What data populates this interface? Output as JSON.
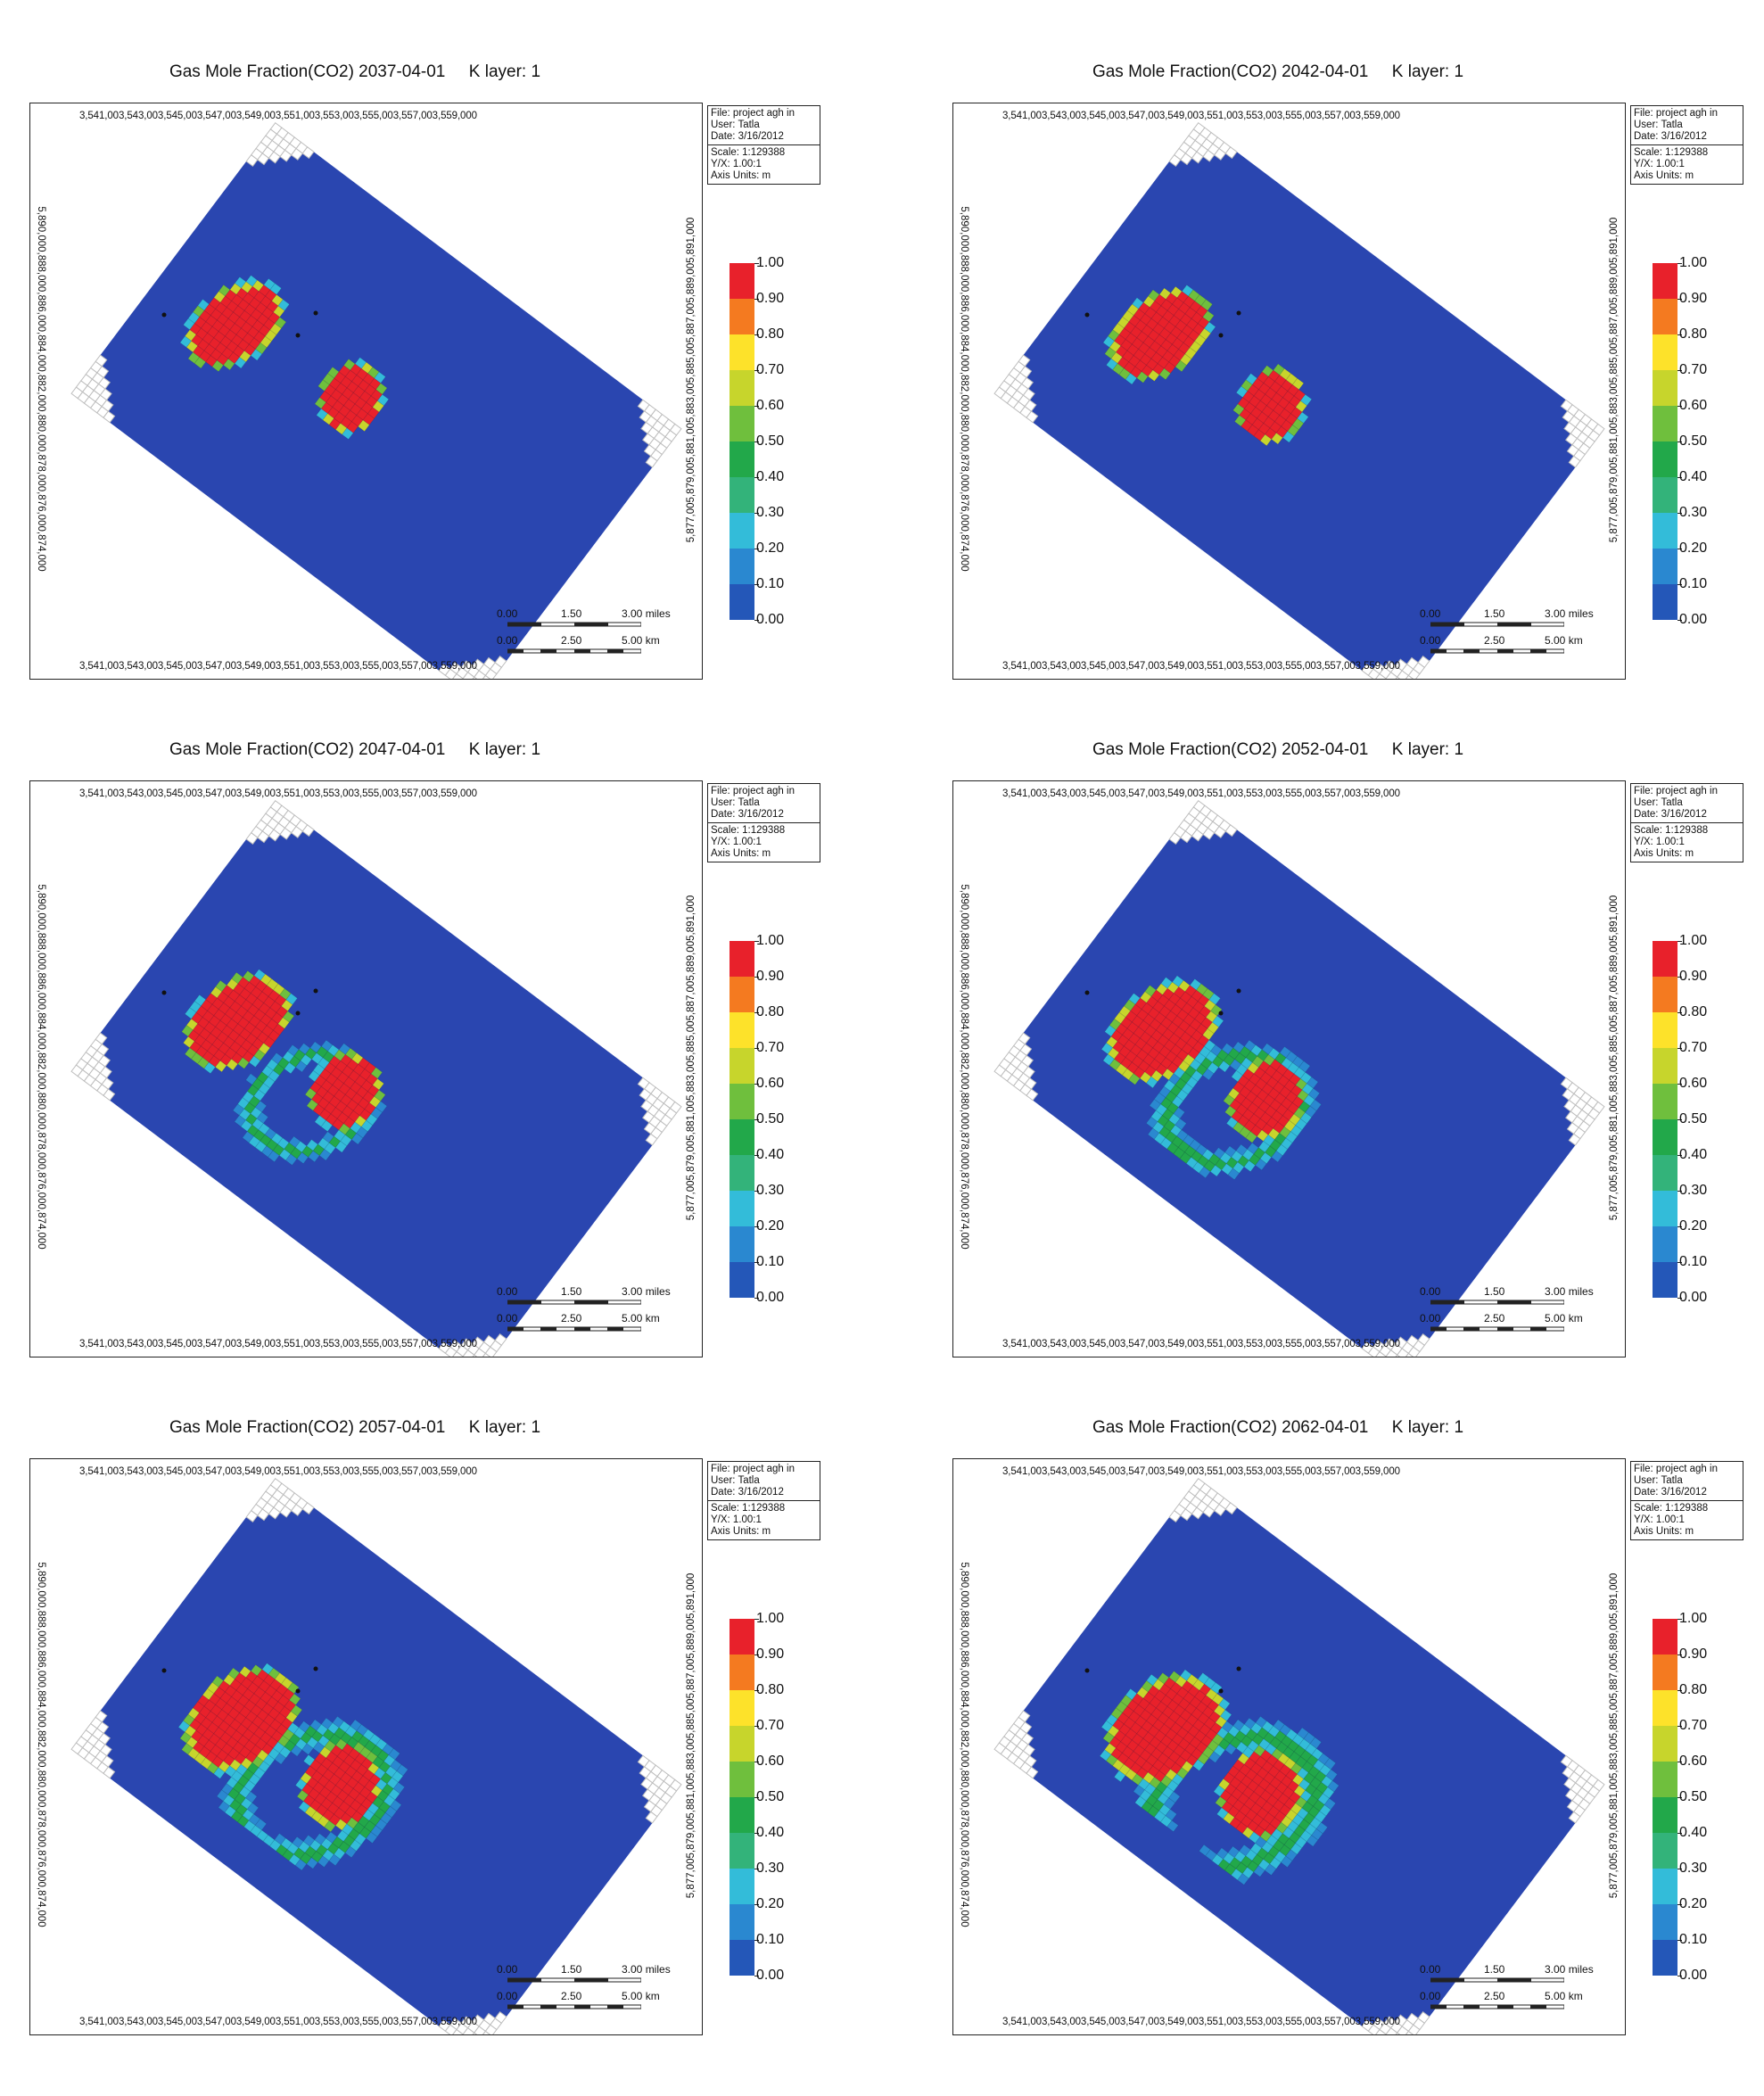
{
  "panels": [
    {
      "title": "Gas Mole Fraction(CO2) 2037-04-01",
      "layer": "K layer: 1",
      "stage": 0
    },
    {
      "title": "Gas Mole Fraction(CO2) 2042-04-01",
      "layer": "K layer: 1",
      "stage": 1
    },
    {
      "title": "Gas Mole Fraction(CO2) 2047-04-01",
      "layer": "K layer: 1",
      "stage": 2
    },
    {
      "title": "Gas Mole Fraction(CO2) 2052-04-01",
      "layer": "K layer: 1",
      "stage": 3
    },
    {
      "title": "Gas Mole Fraction(CO2) 2057-04-01",
      "layer": "K layer: 1",
      "stage": 4
    },
    {
      "title": "Gas Mole Fraction(CO2) 2062-04-01",
      "layer": "K layer: 1",
      "stage": 5
    }
  ],
  "axes": {
    "x_ticks": "3,541,003,543,003,545,003,547,003,549,003,551,003,553,003,555,003,557,003,559,000",
    "y_left_ticks": "5,890,000,888,000,886,000,884,000,882,000,880,000,878,000,876,000,874,000",
    "y_right_ticks": "5,877,005,879,005,881,005,883,005,885,005,887,005,889,005,891,000"
  },
  "info_box": {
    "file": "File: project agh in",
    "user": "User: Tatla",
    "date": "Date: 3/16/2012",
    "scale": "Scale: 1:129388",
    "yx": "Y/X: 1.00:1",
    "axis_units": "Axis Units: m"
  },
  "scale_bar": {
    "miles_0": "0.00",
    "miles_mid": "1.50",
    "miles_end": "3.00 miles",
    "km_0": "0.00",
    "km_mid": "2.50",
    "km_end": "5.00 km"
  },
  "colorbar": {
    "ticks": [
      "1.00",
      "0.90",
      "0.80",
      "0.70",
      "0.60",
      "0.50",
      "0.40",
      "0.30",
      "0.20",
      "0.10",
      "0.00"
    ],
    "colors": [
      "#e8212b",
      "#f47a20",
      "#fde22a",
      "#c7d52c",
      "#6fbf3d",
      "#22a84a",
      "#33b37a",
      "#33bcd9",
      "#2a88d0",
      "#2457b8"
    ]
  },
  "palette": {
    "background_field": "#2a46b0",
    "plume": "#e11d1d",
    "inactive_cell": "#bdbdbd"
  }
}
